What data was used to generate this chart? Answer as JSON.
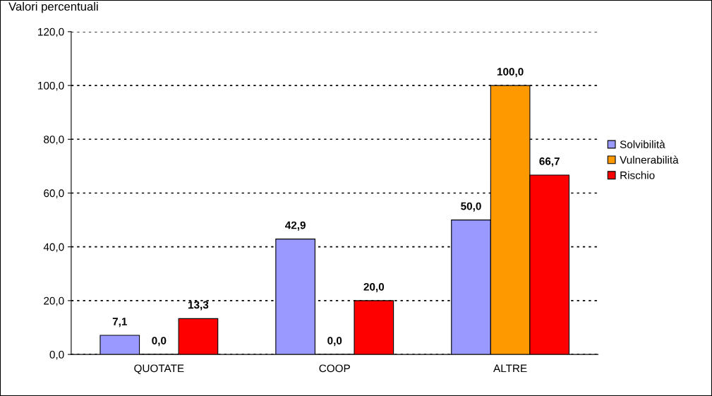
{
  "chart_data": {
    "type": "bar",
    "title": "Valori percentuali",
    "categories": [
      "QUOTATE",
      "COOP",
      "ALTRE"
    ],
    "series": [
      {
        "name": "Solvibilità",
        "color": "#9999ff",
        "values": [
          7.1,
          42.9,
          50.0
        ],
        "value_labels": [
          "7,1",
          "42,9",
          "50,0"
        ]
      },
      {
        "name": "Vulnerabilità",
        "color": "#ff9900",
        "values": [
          0.0,
          0.0,
          100.0
        ],
        "value_labels": [
          "0,0",
          "0,0",
          "100,0"
        ]
      },
      {
        "name": "Rischio",
        "color": "#ff0000",
        "values": [
          13.3,
          20.0,
          66.7
        ],
        "value_labels": [
          "13,3",
          "20,0",
          "66,7"
        ]
      }
    ],
    "ylim": [
      0,
      120
    ],
    "yticks": [
      {
        "value": 0,
        "label": "0,0"
      },
      {
        "value": 20,
        "label": "20,0"
      },
      {
        "value": 40,
        "label": "40,0"
      },
      {
        "value": 60,
        "label": "60,0"
      },
      {
        "value": 80,
        "label": "80,0"
      },
      {
        "value": 100,
        "label": "100,0"
      },
      {
        "value": 120,
        "label": "120,0"
      }
    ],
    "grid": "y",
    "legend": "right"
  }
}
